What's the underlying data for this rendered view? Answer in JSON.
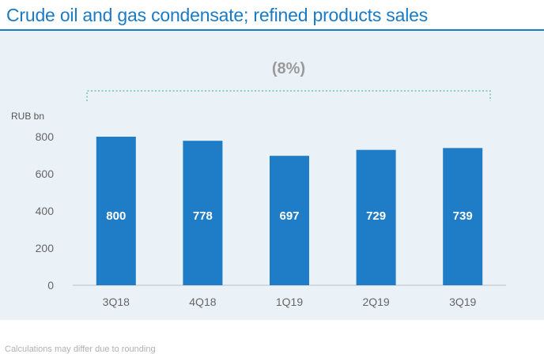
{
  "page": {
    "title": "Crude oil and gas condensate; refined products sales",
    "footnote": "Calculations may differ due to rounding"
  },
  "colors": {
    "accent": "#1a7ac4",
    "bar": "#1f7cc6",
    "panel": "#eaf1f7",
    "bracket": "#4cbf8f"
  },
  "chart_data": {
    "type": "bar",
    "categories": [
      "3Q18",
      "4Q18",
      "1Q19",
      "2Q19",
      "3Q19"
    ],
    "values": [
      800,
      778,
      697,
      729,
      739
    ],
    "data_labels": [
      "800",
      "778",
      "697",
      "729",
      "739"
    ],
    "ylabel": "RUB bn",
    "ylim": [
      0,
      800
    ],
    "yticks": [
      "0",
      "200",
      "400",
      "600",
      "800"
    ],
    "annotation": "(8%)",
    "grid": false,
    "legend": "none"
  }
}
